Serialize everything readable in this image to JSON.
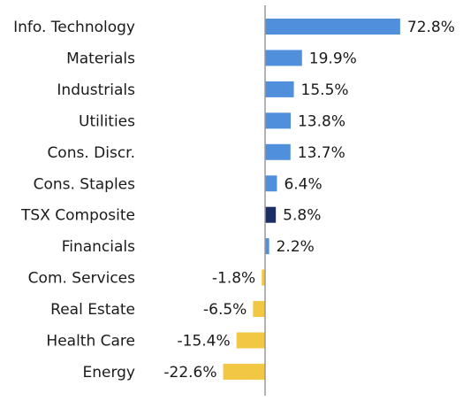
{
  "chart_data": {
    "type": "bar",
    "orientation": "horizontal",
    "title": "",
    "xlabel": "",
    "ylabel": "",
    "categories": [
      "Info. Technology",
      "Materials",
      "Industrials",
      "Utilities",
      "Cons. Discr.",
      "Cons. Staples",
      "TSX Composite",
      "Financials",
      "Com. Services",
      "Real Estate",
      "Health Care",
      "Energy"
    ],
    "values": [
      72.8,
      19.9,
      15.5,
      13.8,
      13.7,
      6.4,
      5.8,
      2.2,
      -1.8,
      -6.5,
      -15.4,
      -22.6
    ],
    "value_labels": [
      "72.8%",
      "19.9%",
      "15.5%",
      "13.8%",
      "13.7%",
      "6.4%",
      "5.8%",
      "2.2%",
      "-1.8%",
      "-6.5%",
      "-15.4%",
      "-22.6%"
    ],
    "grid": false,
    "legend": "none",
    "colors": {
      "positive": "#4f8fdb",
      "negative": "#f2c744",
      "highlight": "#1b2f66",
      "axis": "#999999"
    },
    "highlight_category": "TSX Composite"
  }
}
